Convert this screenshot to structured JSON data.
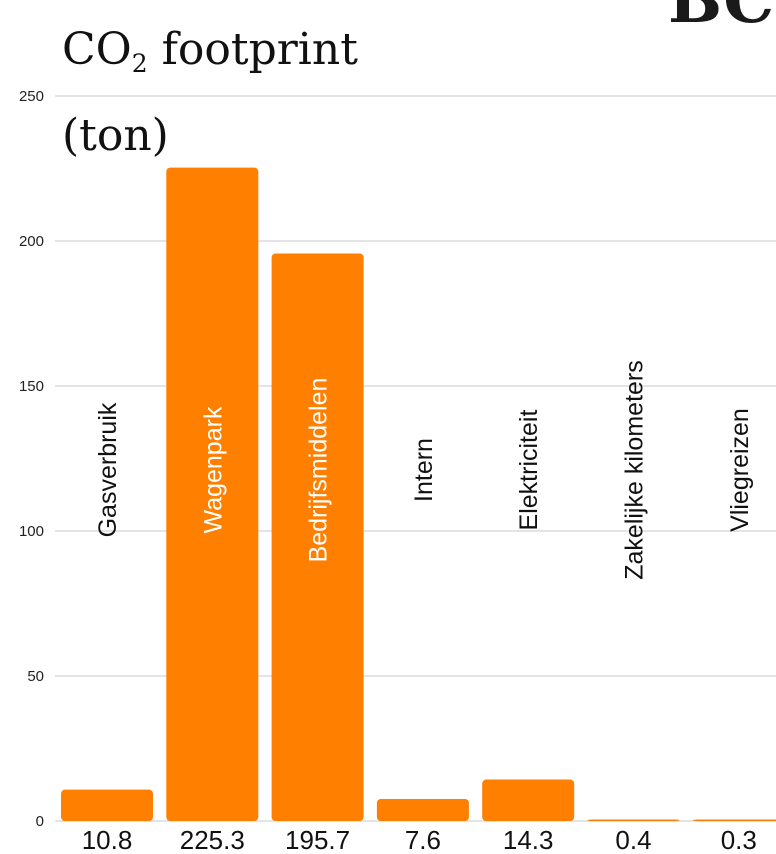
{
  "logo_text": "BC",
  "chart_data": {
    "type": "bar",
    "title": {
      "prefix": "CO",
      "subscript": "2",
      "suffix": " footprint",
      "line2": "(ton)"
    },
    "categories": [
      "Gasverbruik",
      "Wagenpark",
      "Bedrijfsmiddelen",
      "Intern",
      "Elektriciteit",
      "Zakelijke kilometers",
      "Vliegreizen"
    ],
    "values": [
      10.8,
      225.3,
      195.7,
      7.6,
      14.3,
      0.4,
      0.3
    ],
    "value_labels": [
      "10.8",
      "225.3",
      "195.7",
      "7.6",
      "14.3",
      "0.4",
      "0.3"
    ],
    "y_ticks": [
      "0",
      "50",
      "100",
      "150",
      "200",
      "250"
    ],
    "ylim": [
      0,
      250
    ],
    "grid": true,
    "bar_color": "#FF7F00",
    "grid_color": "#C8C8C8"
  }
}
